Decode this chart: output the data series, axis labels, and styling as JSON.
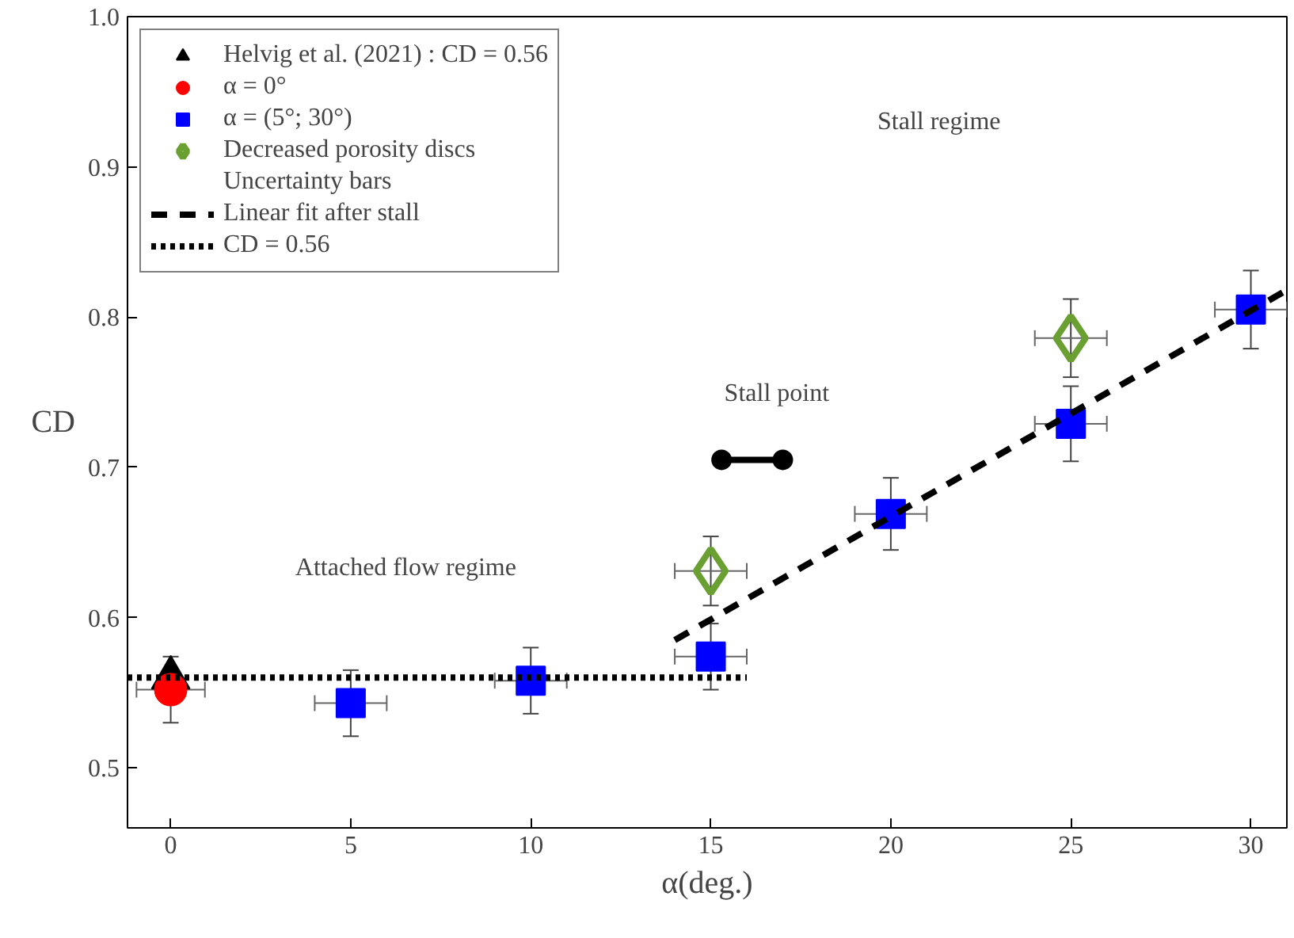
{
  "chart_data": {
    "type": "scatter",
    "xlabel": "α(deg.)",
    "ylabel": "CD",
    "xlim": [
      -1.2,
      31
    ],
    "ylim": [
      0.46,
      1.0
    ],
    "xticks": [
      0,
      5,
      10,
      15,
      20,
      25,
      30
    ],
    "yticks": [
      {
        "value": 0.5,
        "label": "0.5"
      },
      0.6,
      0.7,
      0.8,
      0.9,
      {
        "value": 1.0,
        "label": "1.0"
      }
    ],
    "grid": false,
    "legend": "top left",
    "series": [
      {
        "name": "Helvig et al. (2021) : CD = 0.56",
        "marker": "triangle",
        "color": "#000000",
        "x": [
          0
        ],
        "values": [
          0.56
        ]
      },
      {
        "name": "α = 0°",
        "marker": "circle",
        "color": "#ff0000",
        "x": [
          0
        ],
        "values": [
          0.552
        ],
        "errors": [
          0.022
        ],
        "xerrors": [
          0.95
        ]
      },
      {
        "name": "α = (5°; 30°)",
        "marker": "square",
        "color": "#0000ff",
        "x": [
          5,
          10,
          15,
          20,
          25,
          30
        ],
        "values": [
          0.543,
          0.558,
          0.574,
          0.669,
          0.729,
          0.805
        ],
        "errors": [
          0.022,
          0.022,
          0.022,
          0.024,
          0.025,
          0.026
        ],
        "xerrors": [
          1.0,
          1.0,
          1.0,
          1.0,
          1.0,
          1.0
        ]
      },
      {
        "name": "Decreased porosity discs",
        "marker": "diamond",
        "color": "#6aa032",
        "x": [
          15,
          25
        ],
        "values": [
          0.631,
          0.786
        ],
        "errors": [
          0.023,
          0.026
        ],
        "xerrors": [
          1.0,
          1.0
        ]
      },
      {
        "name": "Linear fit after stall",
        "type": "line",
        "line_style": "dashed",
        "color": "#000000",
        "x": [
          14,
          31
        ],
        "values": [
          0.585,
          0.818
        ]
      },
      {
        "type": "line",
        "line_style": "solid",
        "marker": "circle",
        "color": "#000000",
        "x": [
          15.3,
          17
        ],
        "values": [
          0.705,
          0.705
        ]
      },
      {
        "name": "CD = 0.56",
        "type": "line",
        "line_style": "dotted",
        "color": "#000000",
        "x": [
          -1.2,
          16
        ],
        "values": [
          0.56,
          0.56
        ]
      }
    ],
    "annotations": [
      "Uncertainty bars",
      "Stall point",
      "Attached flow regime",
      "Stall regime"
    ]
  }
}
